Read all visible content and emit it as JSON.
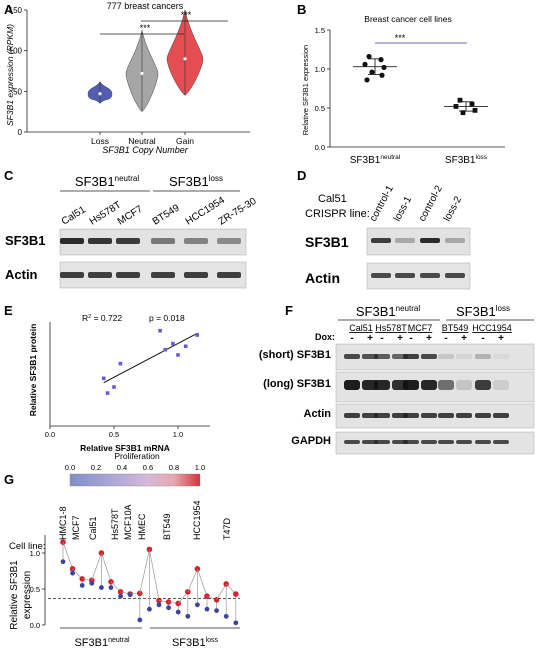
{
  "panels": {
    "A": {
      "letter": "A",
      "title": "777 breast cancers",
      "ylabel": "SF3B1 expression (RPKM)",
      "xlabel": "SF3B1 Copy Number",
      "sig": [
        "***",
        "***"
      ]
    },
    "B": {
      "letter": "B",
      "title": "Breast cancer cell lines",
      "ylabel": "Relative SF3B1 expression",
      "sig": "***",
      "cat1": "SF3B1",
      "cat1_sup": "neutral",
      "cat2": "SF3B1",
      "cat2_sup": "loss"
    },
    "C": {
      "letter": "C",
      "group1": "SF3B1",
      "group1_sup": "neutral",
      "group2": "SF3B1",
      "group2_sup": "loss",
      "lanes": [
        "Cal51",
        "Hs578T",
        "MCF7",
        "BT549",
        "HCC1954",
        "ZR-75-30"
      ],
      "row1": "SF3B1",
      "row2": "Actin"
    },
    "D": {
      "letter": "D",
      "title_line1": "Cal51",
      "title_line2": "CRISPR line:",
      "lanes": [
        "control-1",
        "loss-1",
        "control-2",
        "loss-2"
      ],
      "row1": "SF3B1",
      "row2": "Actin"
    },
    "E": {
      "letter": "E",
      "r2_prefix": "R",
      "r2_sup": "2",
      "r2_value": " = 0.722",
      "pvalue": "p = 0.018",
      "xlabel": "Relative SF3B1 mRNA",
      "ylabel": "Relative SF3B1 protein"
    },
    "F": {
      "letter": "F",
      "group1": "SF3B1",
      "group1_sup": "neutral",
      "group2": "SF3B1",
      "group2_sup": "loss",
      "lines": [
        "Cal51",
        "Hs578T",
        "MCF7",
        "BT549",
        "HCC1954"
      ],
      "dox_label": "Dox:",
      "dox_marks": [
        "-",
        "+"
      ],
      "rows": [
        "(short) SF3B1",
        "(long) SF3B1",
        "Actin",
        "GAPDH"
      ]
    },
    "G": {
      "letter": "G",
      "colorbar_title": "Proliferation",
      "colorbar_ticks": [
        "0.0",
        "0.2",
        "0.4",
        "0.6",
        "0.8",
        "1.0"
      ],
      "cell_line_label": "Cell line:",
      "cell_lines": [
        "HMC1-8",
        "MCF7",
        "Cal51",
        "Hs578T",
        "MCF10A",
        "HMEC",
        "BT549",
        "HCC1954",
        "T47D"
      ],
      "ylabel_line1": "Relative SF3B1",
      "ylabel_line2": "expression",
      "group1": "SF3B1",
      "group1_sup": "neutral",
      "group2": "SF3B1",
      "group2_sup": "loss"
    }
  },
  "chart_data": [
    {
      "panel": "A",
      "type": "violin",
      "categories": [
        "Loss",
        "Neutral",
        "Gain"
      ],
      "medians": [
        47,
        72,
        90
      ],
      "ranges": [
        [
          35,
          62
        ],
        [
          25,
          125
        ],
        [
          45,
          150
        ]
      ],
      "colors": [
        "#3f4aa8",
        "#9c9c9c",
        "#e23a40"
      ],
      "yticks": [
        0,
        50,
        100,
        150
      ],
      "ylim": [
        0,
        150
      ]
    },
    {
      "panel": "B",
      "type": "scatter",
      "categories": [
        "neutral",
        "loss"
      ],
      "neutral_points": [
        1.16,
        1.12,
        1.06,
        1.02,
        0.96,
        0.92,
        0.86
      ],
      "loss_points": [
        0.6,
        0.55,
        0.52,
        0.47,
        0.44
      ],
      "means": [
        1.03,
        0.52
      ],
      "sd": [
        0.1,
        0.06
      ],
      "yticks": [
        0.0,
        0.5,
        1.0,
        1.5
      ],
      "ylim": [
        0,
        1.5
      ]
    },
    {
      "panel": "E",
      "type": "scatter",
      "x": [
        0.42,
        0.45,
        0.5,
        0.55,
        0.86,
        0.9,
        0.96,
        1.0,
        1.06,
        1.15
      ],
      "y": [
        0.55,
        0.38,
        0.45,
        0.72,
        1.1,
        0.88,
        0.95,
        0.82,
        0.92,
        1.05
      ],
      "fit": [
        [
          0.42,
          0.5
        ],
        [
          1.15,
          1.07
        ]
      ],
      "xticks": [
        0.0,
        0.5,
        1.0
      ],
      "xlim": [
        0,
        1.25
      ],
      "ylim": [
        0,
        1.2
      ],
      "color": "#6a5acd"
    },
    {
      "panel": "G",
      "type": "dot",
      "ylim": [
        0,
        1.25
      ],
      "yticks": [
        0.0,
        0.5,
        1.0
      ],
      "dashed_y": 0.37,
      "pairs": [
        {
          "x": 0,
          "high": 1.15,
          "low": 0.88
        },
        {
          "x": 1,
          "high": 0.78,
          "low": 0.72
        },
        {
          "x": 2,
          "high": 0.64,
          "low": 0.55
        },
        {
          "x": 3,
          "high": 0.62,
          "low": 0.58
        },
        {
          "x": 4,
          "high": 1.0,
          "low": 0.52
        },
        {
          "x": 5,
          "high": 0.6,
          "low": 0.52
        },
        {
          "x": 6,
          "high": 0.46,
          "low": 0.4
        },
        {
          "x": 7,
          "high": 0.43,
          "low": 0.42
        },
        {
          "x": 8,
          "high": 0.44,
          "low": 0.07
        },
        {
          "x": 9,
          "high": 1.05,
          "low": 0.22
        },
        {
          "x": 10,
          "high": 0.34,
          "low": 0.28
        },
        {
          "x": 11,
          "high": 0.32,
          "low": 0.24
        },
        {
          "x": 12,
          "high": 0.3,
          "low": 0.18
        },
        {
          "x": 13,
          "high": 0.46,
          "low": 0.12
        },
        {
          "x": 14,
          "high": 0.78,
          "low": 0.28
        },
        {
          "x": 15,
          "high": 0.4,
          "low": 0.22
        },
        {
          "x": 16,
          "high": 0.35,
          "low": 0.2
        },
        {
          "x": 17,
          "high": 0.57,
          "low": 0.12
        },
        {
          "x": 18,
          "high": 0.43,
          "low": 0.03
        }
      ]
    }
  ]
}
